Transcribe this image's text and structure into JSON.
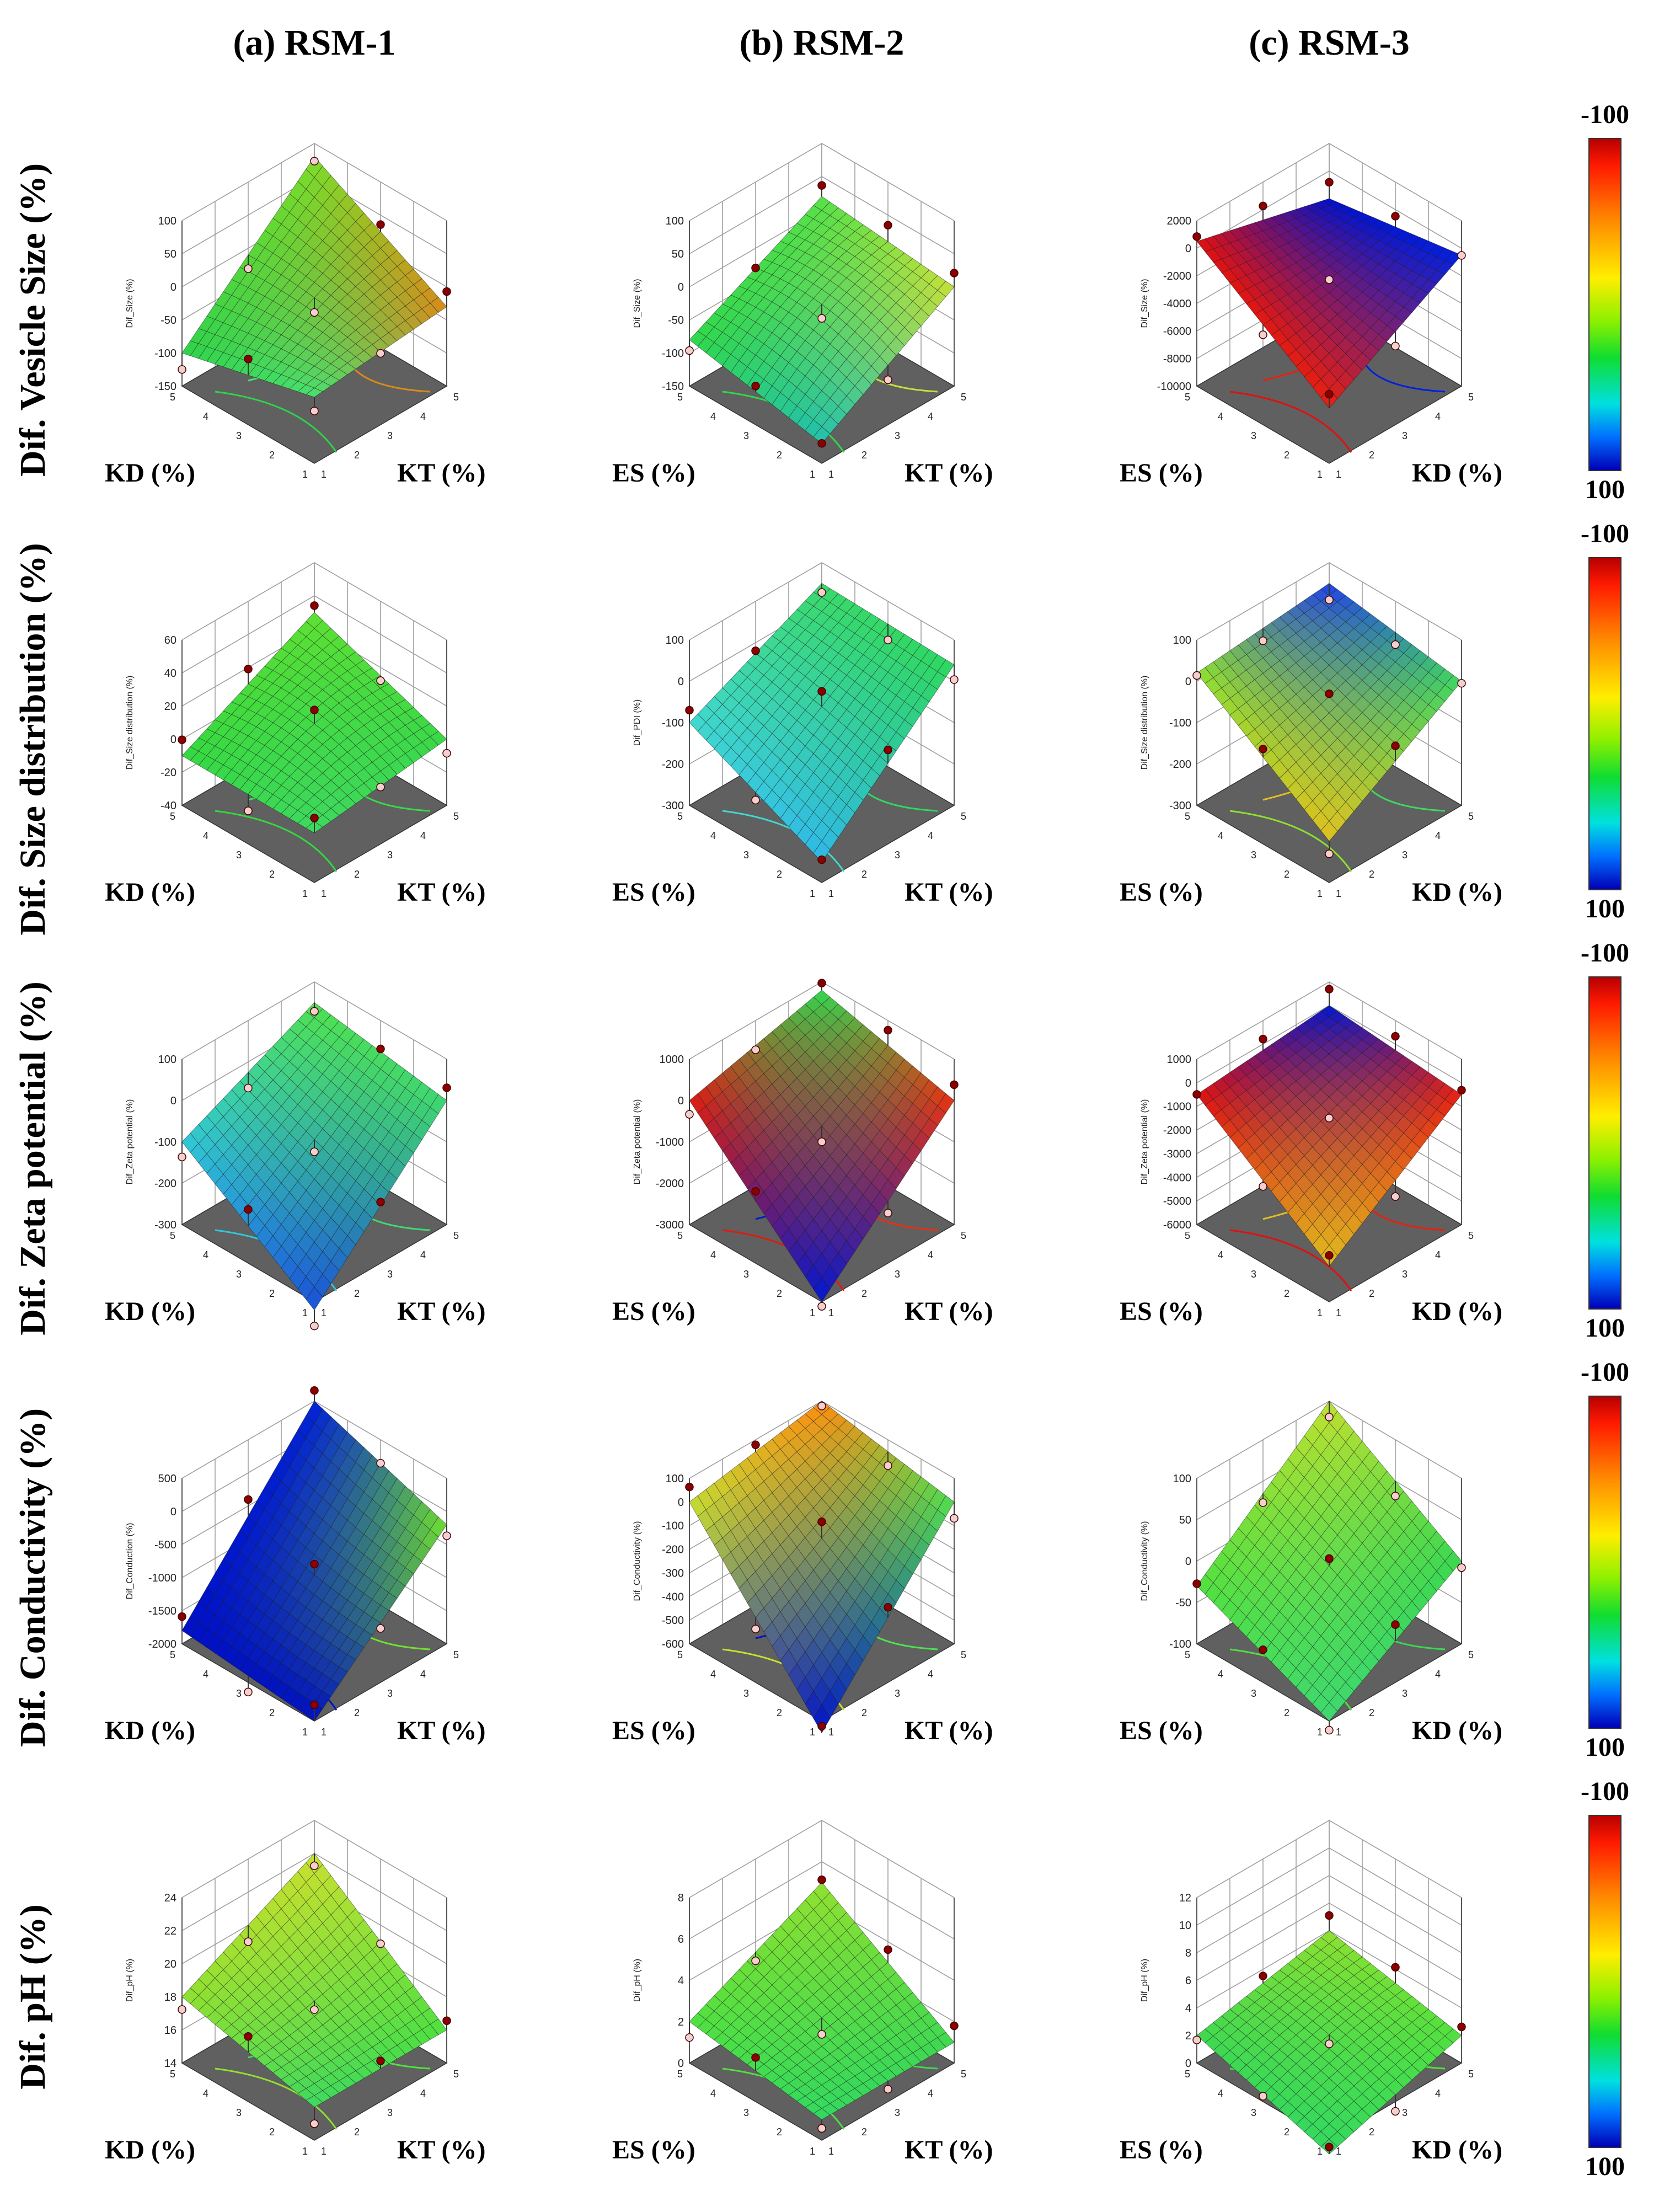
{
  "columns": [
    {
      "label": "(a) RSM-1"
    },
    {
      "label": "(b) RSM-2"
    },
    {
      "label": "(c) RSM-3"
    }
  ],
  "rows": [
    {
      "label": "Dif. Vesicle Size (%)"
    },
    {
      "label": "Dif. Size distribution (%)"
    },
    {
      "label": "Dif. Zeta potential (%)"
    },
    {
      "label": "Dif. Conductivity (%)"
    },
    {
      "label": "Dif. pH (%)"
    }
  ],
  "colorbar": {
    "top": "-100",
    "bottom": "100"
  },
  "colors": {
    "floor": "#606060",
    "point": "#8b0000",
    "mesh": "#1a1a1a"
  },
  "chart_data": [
    {
      "type": "surface",
      "column": 0,
      "row": 0,
      "xlabel": "KD (%)",
      "ylabel": "KT (%)",
      "zlabel": "Dif_Size (%)",
      "zticks": [
        "100",
        "50",
        "0",
        "-50",
        "-100",
        "-150"
      ],
      "xticks": [
        "1",
        "2",
        "3",
        "4",
        "5"
      ],
      "yticks": [
        "1",
        "2",
        "3",
        "4",
        "5"
      ],
      "corners": [
        -100,
        80,
        -30,
        -50
      ],
      "center": 10,
      "colors": [
        "#2fd24a",
        "#7ddc2a",
        "#d88a1a",
        "#48e070"
      ]
    },
    {
      "type": "surface",
      "column": 1,
      "row": 0,
      "xlabel": "ES (%)",
      "ylabel": "KT (%)",
      "zlabel": "Dif_Size (%)",
      "zticks": [
        "100",
        "50",
        "0",
        "-50",
        "-100",
        "-150"
      ],
      "xticks": [
        "1",
        "2",
        "3",
        "4",
        "5"
      ],
      "yticks": [
        "1",
        "2",
        "3",
        "4",
        "5"
      ],
      "corners": [
        -80,
        20,
        0,
        -120
      ],
      "center": 30,
      "colors": [
        "#30d84a",
        "#55e04a",
        "#c6e03a",
        "#20c0b0"
      ]
    },
    {
      "type": "surface",
      "column": 2,
      "row": 0,
      "xlabel": "ES (%)",
      "ylabel": "KD (%)",
      "zlabel": "Dif_Size (%)",
      "zticks": [
        "2000",
        "0",
        "-2000",
        "-4000",
        "-6000",
        "-8000",
        "-10000"
      ],
      "xticks": [
        "1",
        "2",
        "3",
        "4",
        "5"
      ],
      "yticks": [
        "1",
        "2",
        "3",
        "4",
        "5"
      ],
      "corners": [
        500,
        -2000,
        -500,
        -6000
      ],
      "center": -3000,
      "colors": [
        "#e01010",
        "#0010d0",
        "#0020e0",
        "#e82010"
      ]
    },
    {
      "type": "surface",
      "column": 0,
      "row": 1,
      "xlabel": "KD (%)",
      "ylabel": "KT (%)",
      "zlabel": "Dif_Size distribution (%)",
      "zticks": [
        "60",
        "40",
        "20",
        "0",
        "-20",
        "-40"
      ],
      "xticks": [
        "1",
        "2",
        "3",
        "4",
        "5"
      ],
      "yticks": [
        "1",
        "2",
        "3",
        "4",
        "5"
      ],
      "corners": [
        -10,
        30,
        0,
        -10
      ],
      "center": 30,
      "colors": [
        "#34d840",
        "#5ee034",
        "#3ad848",
        "#40d860"
      ]
    },
    {
      "type": "surface",
      "column": 1,
      "row": 1,
      "xlabel": "ES (%)",
      "ylabel": "KT (%)",
      "zlabel": "Dif_PDI (%)",
      "zticks": [
        "100",
        "0",
        "-100",
        "-200",
        "-300"
      ],
      "xticks": [
        "1",
        "2",
        "3",
        "4",
        "5"
      ],
      "yticks": [
        "1",
        "2",
        "3",
        "4",
        "5"
      ],
      "corners": [
        -100,
        50,
        40,
        -250
      ],
      "center": -50,
      "colors": [
        "#40d8d0",
        "#3ad86a",
        "#2ed860",
        "#30b8e8"
      ]
    },
    {
      "type": "surface",
      "column": 2,
      "row": 1,
      "xlabel": "ES (%)",
      "ylabel": "KD (%)",
      "zlabel": "Dif_Size distribution (%)",
      "zticks": [
        "100",
        "0",
        "-100",
        "-200",
        "-300"
      ],
      "xticks": [
        "1",
        "2",
        "3",
        "4",
        "5"
      ],
      "yticks": [
        "1",
        "2",
        "3",
        "4",
        "5"
      ],
      "corners": [
        20,
        50,
        0,
        -200
      ],
      "center": -50,
      "colors": [
        "#8de030",
        "#2040e8",
        "#40d860",
        "#e0c020"
      ]
    },
    {
      "type": "surface",
      "column": 0,
      "row": 2,
      "xlabel": "KD (%)",
      "ylabel": "KT (%)",
      "zlabel": "Dif_Zeta potential (%)",
      "zticks": [
        "100",
        "0",
        "-100",
        "-200",
        "-300"
      ],
      "xticks": [
        "1",
        "2",
        "3",
        "4",
        "5"
      ],
      "yticks": [
        "1",
        "2",
        "3",
        "4",
        "5"
      ],
      "corners": [
        -100,
        50,
        0,
        -320
      ],
      "center": -100,
      "colors": [
        "#30c8d8",
        "#50e050",
        "#40d870",
        "#1a50d8"
      ]
    },
    {
      "type": "surface",
      "column": 1,
      "row": 2,
      "xlabel": "ES (%)",
      "ylabel": "KT (%)",
      "zlabel": "Dif_Zeta potential (%)",
      "zticks": [
        "1000",
        "0",
        "-1000",
        "-2000",
        "-3000"
      ],
      "xticks": [
        "1",
        "2",
        "3",
        "4",
        "5"
      ],
      "yticks": [
        "1",
        "2",
        "3",
        "4",
        "5"
      ],
      "corners": [
        0,
        800,
        0,
        -3000
      ],
      "center": -800,
      "colors": [
        "#e01a10",
        "#30d850",
        "#e83010",
        "#0018d0"
      ]
    },
    {
      "type": "surface",
      "column": 2,
      "row": 2,
      "xlabel": "ES (%)",
      "ylabel": "KD (%)",
      "zlabel": "Dif_Zeta potential (%)",
      "zticks": [
        "1000",
        "0",
        "-1000",
        "-2000",
        "-3000",
        "-4000",
        "-5000",
        "-6000"
      ],
      "xticks": [
        "1",
        "2",
        "3",
        "4",
        "5"
      ],
      "yticks": [
        "1",
        "2",
        "3",
        "4",
        "5"
      ],
      "corners": [
        -500,
        0,
        -500,
        -4500
      ],
      "center": -1000,
      "colors": [
        "#e01010",
        "#0018d0",
        "#e82010",
        "#e0c020"
      ]
    },
    {
      "type": "surface",
      "column": 0,
      "row": 3,
      "xlabel": "KD (%)",
      "ylabel": "KT (%)",
      "zlabel": "Dif_Conduction (%)",
      "zticks": [
        "500",
        "0",
        "-500",
        "-1000",
        "-1500",
        "-2000"
      ],
      "xticks": [
        "1",
        "2",
        "3",
        "4",
        "5"
      ],
      "yticks": [
        "1",
        "2",
        "3",
        "4",
        "5"
      ],
      "corners": [
        -1800,
        500,
        -200,
        -2000
      ],
      "center": -1200,
      "colors": [
        "#0010c8",
        "#0020d8",
        "#70e030",
        "#0010c0"
      ]
    },
    {
      "type": "surface",
      "column": 1,
      "row": 3,
      "xlabel": "ES (%)",
      "ylabel": "KT (%)",
      "zlabel": "Dif_Conductivity (%)",
      "zticks": [
        "100",
        "0",
        "-100",
        "-200",
        "-300",
        "-400",
        "-500",
        "-600"
      ],
      "xticks": [
        "1",
        "2",
        "3",
        "4",
        "5"
      ],
      "yticks": [
        "1",
        "2",
        "3",
        "4",
        "5"
      ],
      "corners": [
        0,
        100,
        0,
        -650
      ],
      "center": -200,
      "colors": [
        "#c8e030",
        "#ff8a10",
        "#50e050",
        "#0010c8"
      ]
    },
    {
      "type": "surface",
      "column": 2,
      "row": 3,
      "xlabel": "ES (%)",
      "ylabel": "KD (%)",
      "zlabel": "Dif_Conductivity (%)",
      "zticks": [
        "100",
        "50",
        "0",
        "-50",
        "-100"
      ],
      "xticks": [
        "1",
        "2",
        "3",
        "4",
        "5"
      ],
      "yticks": [
        "1",
        "2",
        "3",
        "4",
        "5"
      ],
      "corners": [
        -30,
        100,
        0,
        -100
      ],
      "center": 0,
      "colors": [
        "#50e040",
        "#c0e030",
        "#3ad850",
        "#40d870"
      ]
    },
    {
      "type": "surface",
      "column": 0,
      "row": 4,
      "xlabel": "KD (%)",
      "ylabel": "KT (%)",
      "zlabel": "Dif_pH (%)",
      "zticks": [
        "24",
        "22",
        "20",
        "18",
        "16",
        "14"
      ],
      "xticks": [
        "1",
        "2",
        "3",
        "4",
        "5"
      ],
      "yticks": [
        "1",
        "2",
        "3",
        "4",
        "5"
      ],
      "corners": [
        18,
        22,
        16,
        16
      ],
      "center": 17,
      "colors": [
        "#90e030",
        "#c8e030",
        "#50e040",
        "#40d860"
      ]
    },
    {
      "type": "surface",
      "column": 1,
      "row": 4,
      "xlabel": "ES (%)",
      "ylabel": "KT (%)",
      "zlabel": "Dif_pH (%)",
      "zticks": [
        "8",
        "6",
        "4",
        "2",
        "0"
      ],
      "xticks": [
        "1",
        "2",
        "3",
        "4",
        "5"
      ],
      "yticks": [
        "1",
        "2",
        "3",
        "4",
        "5"
      ],
      "corners": [
        2,
        5,
        1,
        1
      ],
      "center": 2,
      "colors": [
        "#50e040",
        "#90e030",
        "#40d850",
        "#34d860"
      ]
    },
    {
      "type": "surface",
      "column": 2,
      "row": 4,
      "xlabel": "ES (%)",
      "ylabel": "KD (%)",
      "zlabel": "Dif_pH (%)",
      "zticks": [
        "12",
        "10",
        "8",
        "6",
        "4",
        "2",
        "0"
      ],
      "xticks": [
        "1",
        "2",
        "3",
        "4",
        "5"
      ],
      "yticks": [
        "1",
        "2",
        "3",
        "4",
        "5"
      ],
      "corners": [
        2,
        4,
        2,
        -1
      ],
      "center": 3,
      "colors": [
        "#40d850",
        "#8de030",
        "#50e040",
        "#34d860"
      ]
    }
  ]
}
